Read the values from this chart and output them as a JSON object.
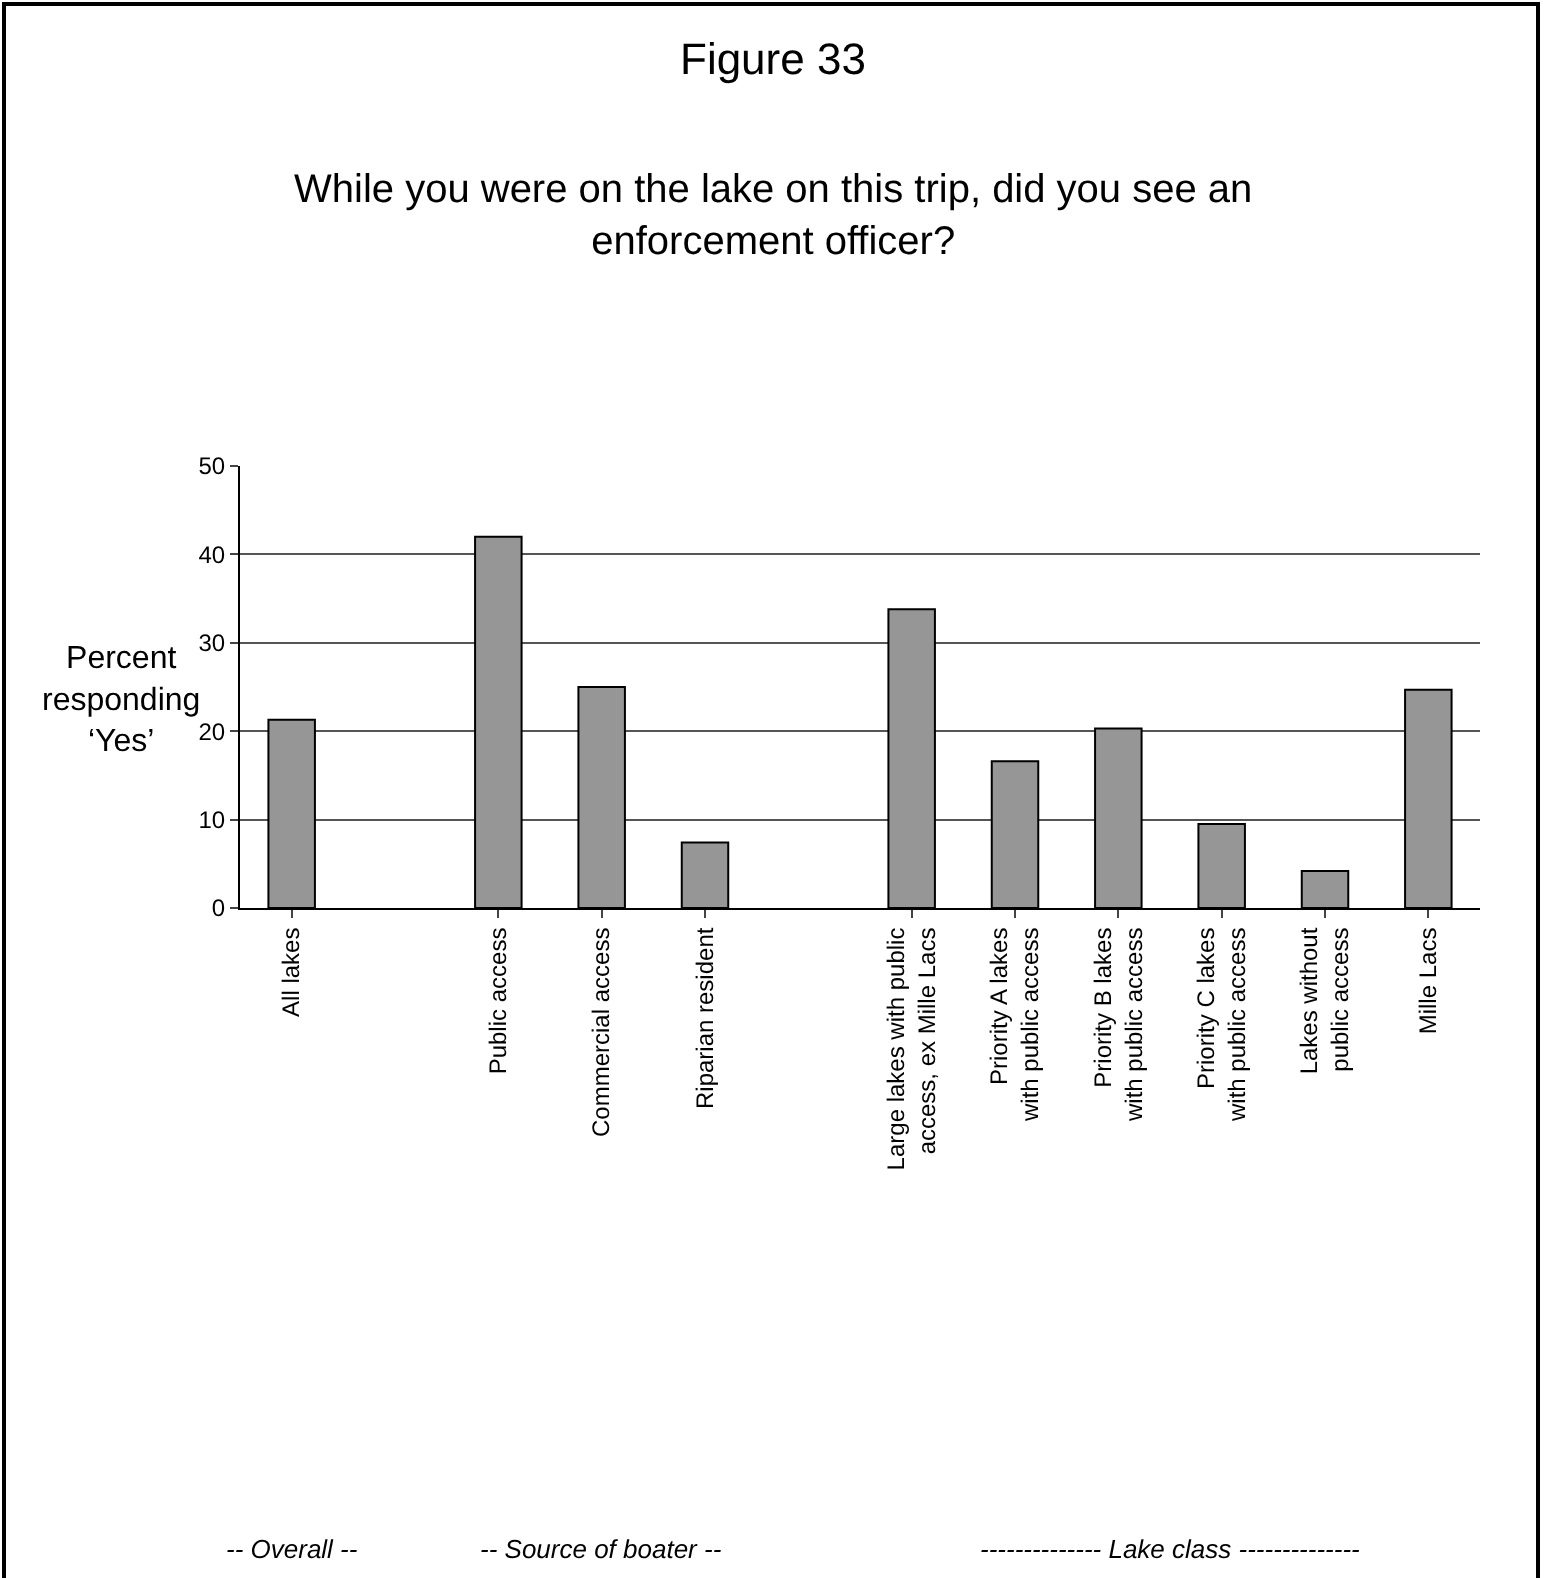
{
  "chart_data": {
    "type": "bar",
    "title": "Figure 33",
    "subtitle": "While you were on the lake on this trip, did you see an\nenforcement officer?",
    "ylabel": "Percent\nresponding\n‘Yes’",
    "categories": [
      "All lakes",
      null,
      "Public access",
      "Commercial access",
      "Riparian resident",
      null,
      "Large lakes with public\naccess, ex Mille Lacs",
      "Priority A lakes\nwith public access",
      "Priority B lakes\nwith public access",
      "Priority C lakes\nwith public access",
      "Lakes without\npublic access",
      "Mille Lacs"
    ],
    "values": [
      21.3,
      null,
      42,
      25,
      7.4,
      null,
      33.8,
      16.6,
      20.3,
      9.5,
      4.2,
      24.7
    ],
    "color": "#969696",
    "ylim": [
      0,
      50
    ],
    "yticks": [
      0,
      10,
      20,
      30,
      40,
      50
    ],
    "grid": "y",
    "annotations": [
      "-- Overall --",
      "-- Source of boater --",
      "-------------- Lake class --------------"
    ]
  }
}
